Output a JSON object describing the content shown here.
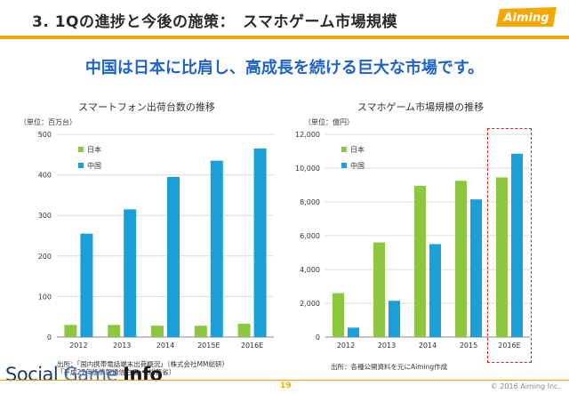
{
  "header": {
    "title": "3. 1Qの進捗と今後の施策：　スマホゲーム市場規模",
    "logo_text": "Aiming"
  },
  "headline": "中国は日本に比肩し、高成長を続ける巨大な市場です。",
  "colors": {
    "japan": "#8dc63f",
    "china": "#1b9fd9",
    "accent": "#f5a900",
    "headline": "#1e63c7",
    "highlight": "#e02020"
  },
  "chart_data": [
    {
      "type": "bar",
      "title": "スマートフォン出荷台数の推移",
      "unit_label": "（単位：百万台）",
      "categories": [
        "2012",
        "2013",
        "2014",
        "2015E",
        "2016E"
      ],
      "series": [
        {
          "name": "日本",
          "values": [
            30,
            30,
            28,
            28,
            33
          ]
        },
        {
          "name": "中国",
          "values": [
            255,
            315,
            395,
            435,
            465
          ]
        }
      ],
      "ylim": [
        0,
        500
      ],
      "yticks": [
        0,
        100,
        200,
        300,
        400,
        500
      ],
      "ytick_labels": [
        "0",
        "100",
        "200",
        "300",
        "400",
        "500"
      ],
      "legend": "top-left",
      "source": [
        "出所：「国内携帯電話端末出荷概況」（株式会社MM総研）",
        "「平成27年版情報通信白書」（総務省）"
      ]
    },
    {
      "type": "bar",
      "title": "スマホゲーム市場規模の推移",
      "unit_label": "（単位：億円）",
      "categories": [
        "2012",
        "2013",
        "2014",
        "2015",
        "2016E"
      ],
      "series": [
        {
          "name": "日本",
          "values": [
            2600,
            5600,
            8950,
            9250,
            9450
          ]
        },
        {
          "name": "中国",
          "values": [
            560,
            2150,
            5500,
            8150,
            10850
          ]
        }
      ],
      "ylim": [
        0,
        12000
      ],
      "yticks": [
        0,
        2000,
        4000,
        6000,
        8000,
        10000,
        12000
      ],
      "ytick_labels": [
        "0",
        "2,000",
        "4,000",
        "6,000",
        "8,000",
        "10,000",
        "12,000"
      ],
      "legend": "top-left",
      "source": [
        "出所：各種公開資料を元にAiming作成"
      ]
    }
  ],
  "footer": {
    "page_number": "19",
    "copyright": "© 2016 Aiming Inc."
  },
  "watermark": {
    "part1": "Social ",
    "part2": "Game ",
    "part3": "Info"
  }
}
